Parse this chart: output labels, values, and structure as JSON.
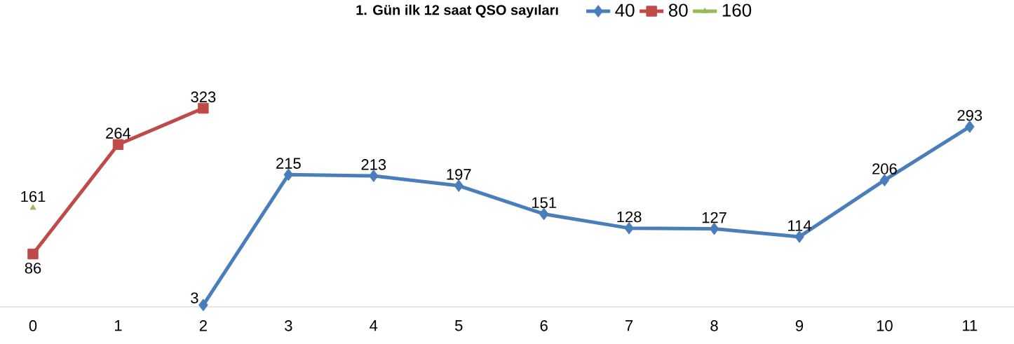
{
  "chart_data": {
    "type": "line",
    "title": "1. Gün ilk 12 saat QSO sayıları",
    "categories": [
      "0",
      "1",
      "2",
      "3",
      "4",
      "5",
      "6",
      "7",
      "8",
      "9",
      "10",
      "11"
    ],
    "series": [
      {
        "name": "40",
        "color": "#4a7ebb",
        "marker": "diamond",
        "values": [
          null,
          null,
          3,
          215,
          213,
          197,
          151,
          128,
          127,
          114,
          206,
          293
        ]
      },
      {
        "name": "80",
        "color": "#be4b48",
        "marker": "square",
        "values": [
          86,
          264,
          323,
          null,
          null,
          null,
          null,
          null,
          null,
          null,
          null,
          null
        ]
      },
      {
        "name": "160",
        "color": "#98b954",
        "marker": "triangle",
        "values": [
          161,
          null,
          null,
          null,
          null,
          null,
          null,
          null,
          null,
          null,
          null,
          null
        ]
      }
    ],
    "data_labels": true,
    "legend": "top",
    "line_style": "solid"
  }
}
